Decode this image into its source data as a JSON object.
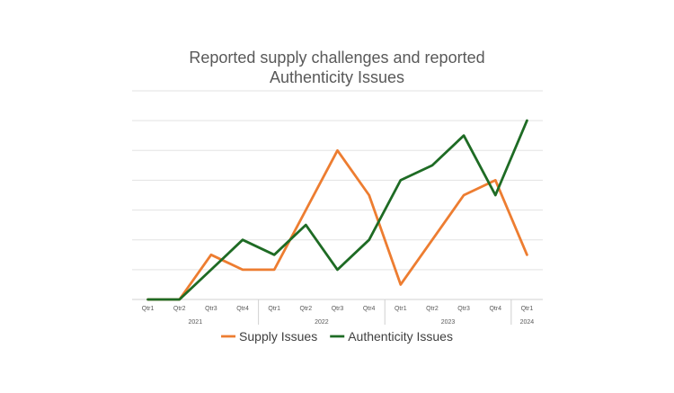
{
  "chart_data": {
    "type": "line",
    "title_lines": [
      "Reported supply challenges and reported",
      "Authenticity Issues"
    ],
    "xlabel": "",
    "ylabel": "",
    "ylim": [
      0,
      7
    ],
    "grid": true,
    "legend_position": "bottom",
    "categories": [
      {
        "quarter": "Qtr1",
        "year": "2021"
      },
      {
        "quarter": "Qtr2",
        "year": "2021"
      },
      {
        "quarter": "Qtr3",
        "year": "2021"
      },
      {
        "quarter": "Qtr4",
        "year": "2021"
      },
      {
        "quarter": "Qtr1",
        "year": "2022"
      },
      {
        "quarter": "Qtr2",
        "year": "2022"
      },
      {
        "quarter": "Qtr3",
        "year": "2022"
      },
      {
        "quarter": "Qtr4",
        "year": "2022"
      },
      {
        "quarter": "Qtr1",
        "year": "2023"
      },
      {
        "quarter": "Qtr2",
        "year": "2023"
      },
      {
        "quarter": "Qtr3",
        "year": "2023"
      },
      {
        "quarter": "Qtr4",
        "year": "2023"
      },
      {
        "quarter": "Qtr1",
        "year": "2024"
      }
    ],
    "years": [
      "2021",
      "2022",
      "2023",
      "2024"
    ],
    "series": [
      {
        "name": "Supply Issues",
        "color": "#ED7D31",
        "values": [
          0,
          0,
          1.5,
          1,
          1,
          3,
          5,
          3.5,
          0.5,
          2,
          3.5,
          4,
          1.5
        ]
      },
      {
        "name": "Authenticity Issues",
        "color": "#1E6B24",
        "values": [
          0,
          0,
          1,
          2,
          1.5,
          2.5,
          1,
          2,
          4,
          4.5,
          5.5,
          3.5,
          6
        ]
      }
    ]
  }
}
